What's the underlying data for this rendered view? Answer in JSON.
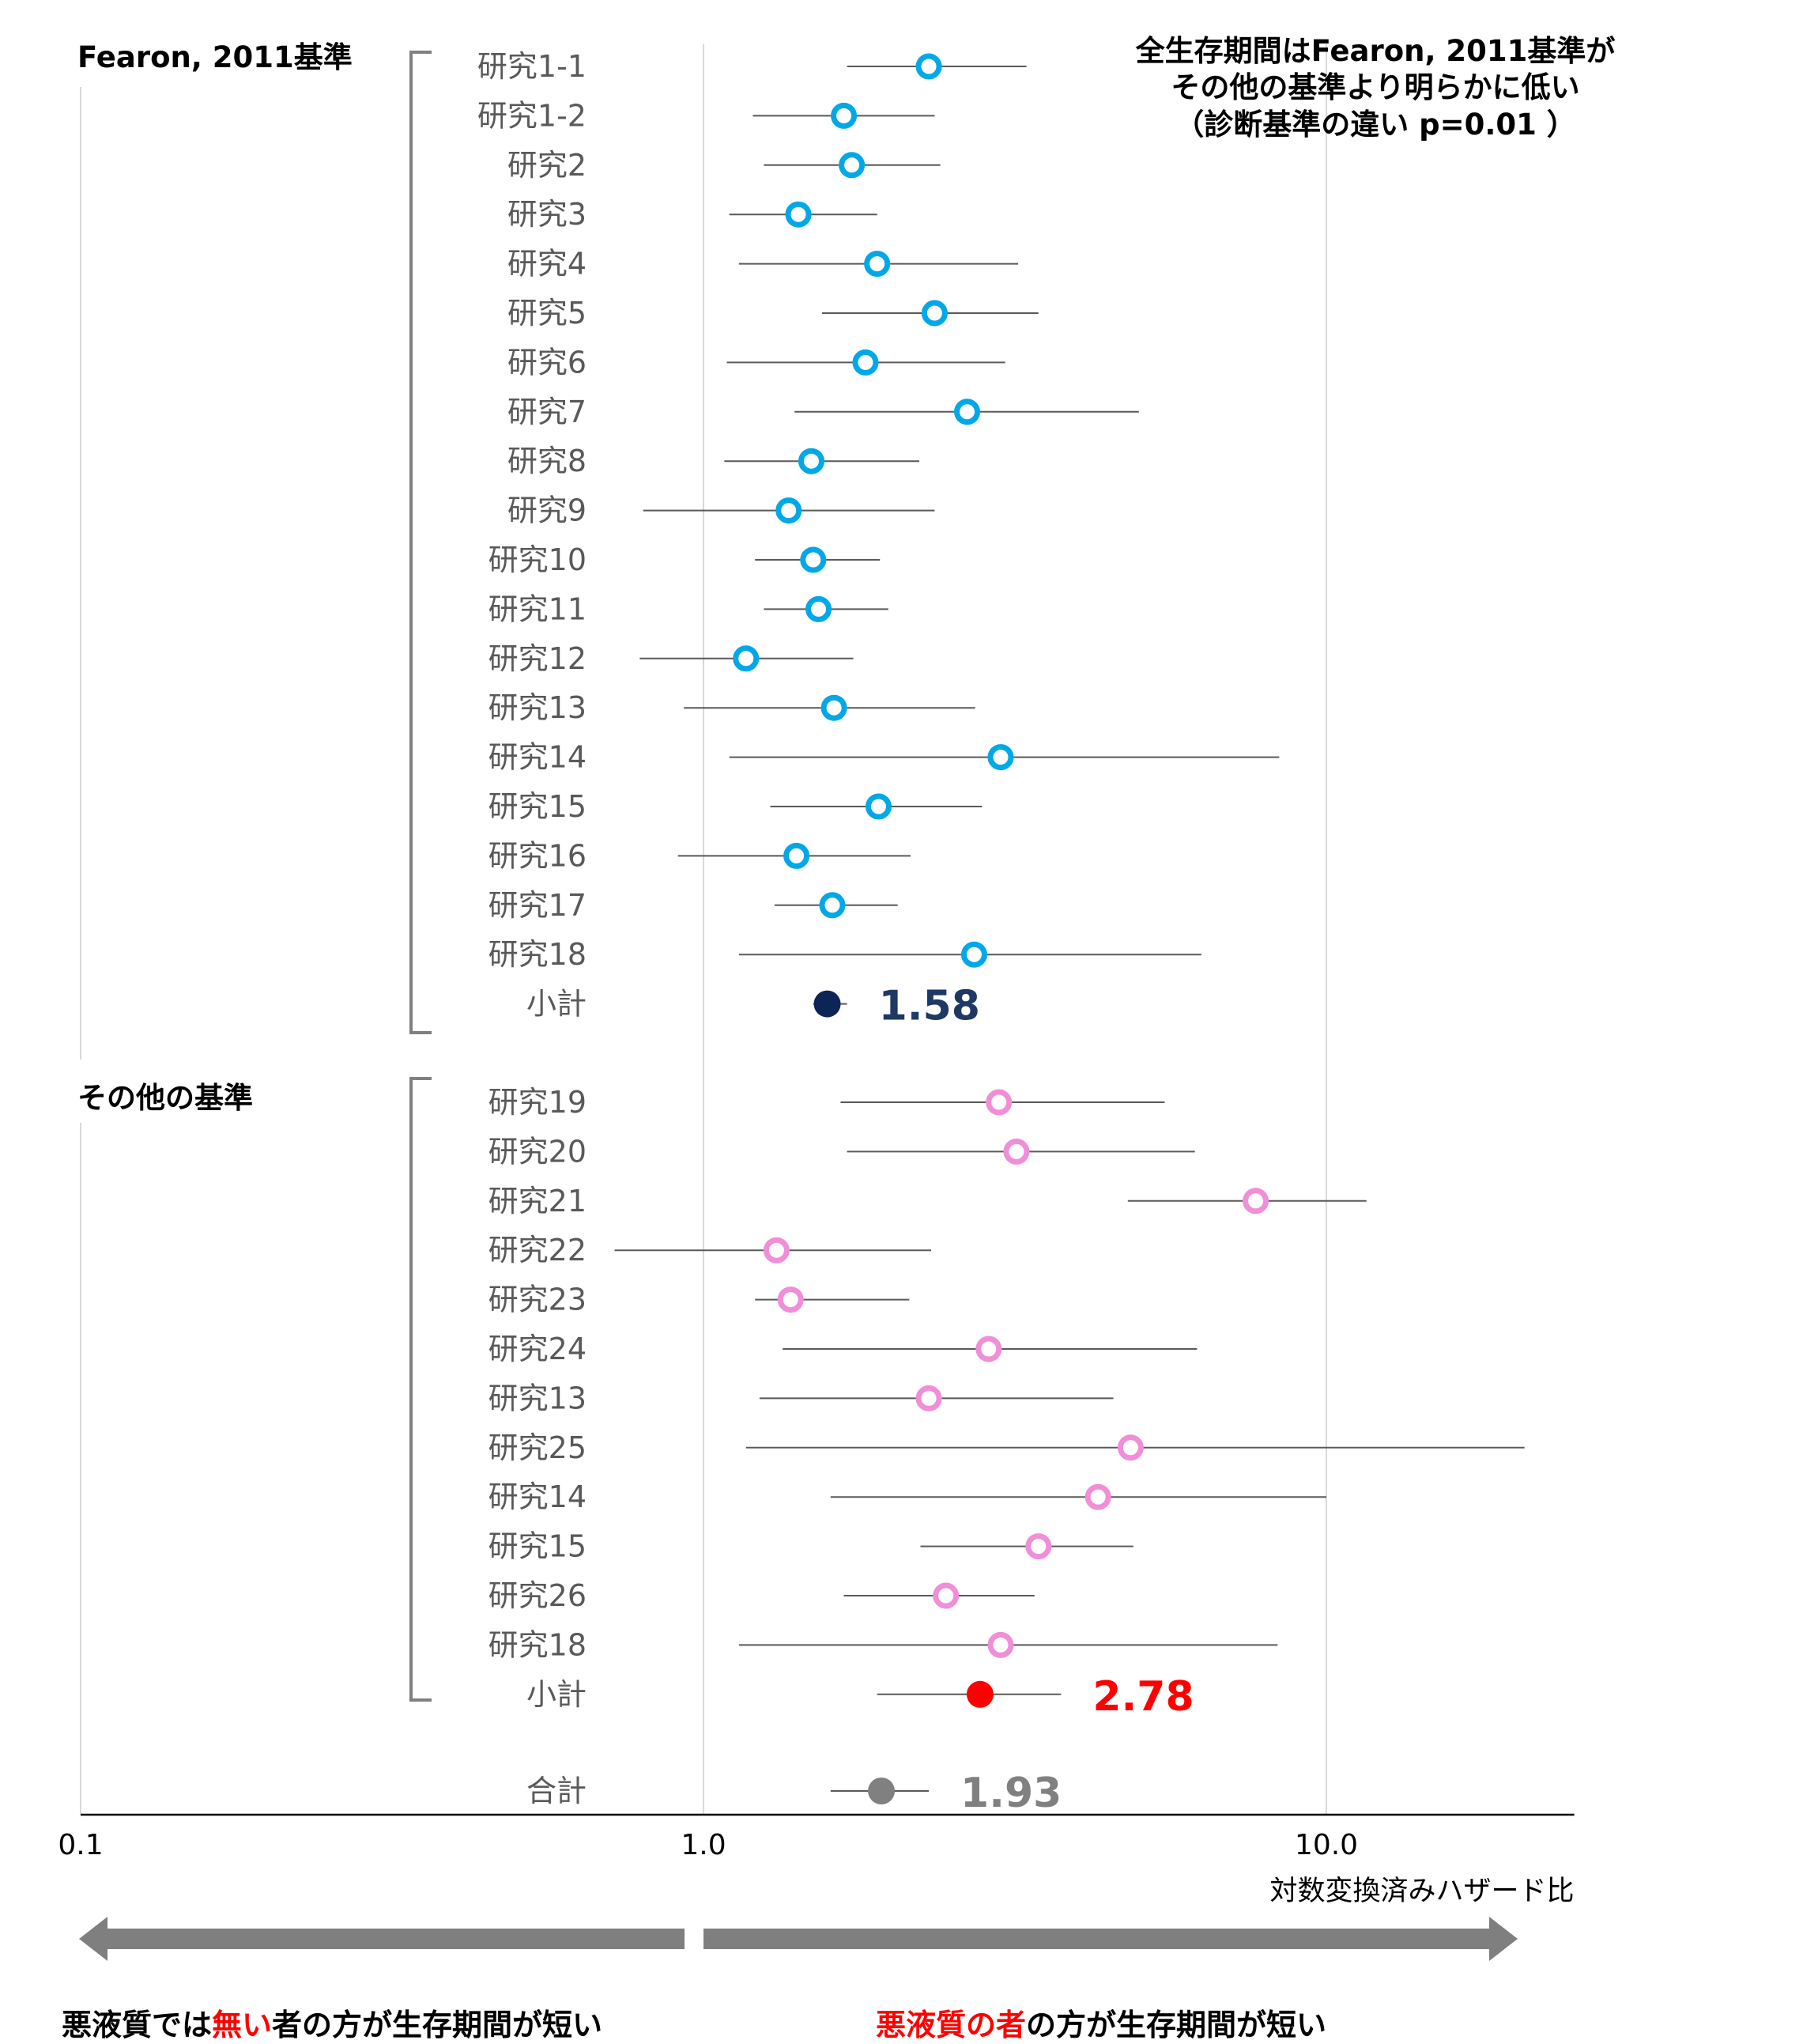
{
  "chart_data": {
    "type": "forest",
    "x_scale": "log",
    "xlim": [
      0.1,
      25
    ],
    "x_ticks": [
      "0.1",
      "1.0",
      "10.0"
    ],
    "xlabel": "対数変換済みハザード比",
    "annotation": [
      "全生存期間はFearon, 2011基準が",
      "その他の基準より明らかに低い",
      "（診断基準の違い p=0.01 ）"
    ],
    "colors": {
      "group1_marker": "#00a8e8",
      "group1_subtotal": "#0d2456",
      "group2_marker": "#f08fd7",
      "group2_subtotal": "#ff0000",
      "total": "#808080",
      "ci_line": "#595959",
      "arrow": "#7f7f7f"
    },
    "groups": [
      {
        "label": "Fearon, 2011基準",
        "studies": [
          {
            "name": "研究1-1",
            "hr": 2.3,
            "lo": 1.7,
            "hi": 3.3
          },
          {
            "name": "研究1-2",
            "hr": 1.68,
            "lo": 1.2,
            "hi": 2.35
          },
          {
            "name": "研究2",
            "hr": 1.73,
            "lo": 1.25,
            "hi": 2.4
          },
          {
            "name": "研究3",
            "hr": 1.42,
            "lo": 1.1,
            "hi": 1.9
          },
          {
            "name": "研究4",
            "hr": 1.9,
            "lo": 1.14,
            "hi": 3.2
          },
          {
            "name": "研究5",
            "hr": 2.35,
            "lo": 1.55,
            "hi": 3.45
          },
          {
            "name": "研究6",
            "hr": 1.82,
            "lo": 1.09,
            "hi": 3.05
          },
          {
            "name": "研究7",
            "hr": 2.65,
            "lo": 1.4,
            "hi": 5.0
          },
          {
            "name": "研究8",
            "hr": 1.49,
            "lo": 1.08,
            "hi": 2.22
          },
          {
            "name": "研究9",
            "hr": 1.37,
            "lo": 0.8,
            "hi": 2.35
          },
          {
            "name": "研究10",
            "hr": 1.5,
            "lo": 1.21,
            "hi": 1.92
          },
          {
            "name": "研究11",
            "hr": 1.53,
            "lo": 1.25,
            "hi": 1.98
          },
          {
            "name": "研究12",
            "hr": 1.17,
            "lo": 0.79,
            "hi": 1.74
          },
          {
            "name": "研究13",
            "hr": 1.62,
            "lo": 0.93,
            "hi": 2.73
          },
          {
            "name": "研究14",
            "hr": 3.0,
            "lo": 1.1,
            "hi": 8.4
          },
          {
            "name": "研究15",
            "hr": 1.91,
            "lo": 1.28,
            "hi": 2.8
          },
          {
            "name": "研究16",
            "hr": 1.41,
            "lo": 0.91,
            "hi": 2.15
          },
          {
            "name": "研究17",
            "hr": 1.61,
            "lo": 1.3,
            "hi": 2.05
          },
          {
            "name": "研究18",
            "hr": 2.72,
            "lo": 1.14,
            "hi": 6.3
          }
        ],
        "subtotal": {
          "name": "小計",
          "hr": 1.58,
          "lo": 1.5,
          "hi": 1.7,
          "label": "1.58"
        }
      },
      {
        "label": "その他の基準",
        "studies": [
          {
            "name": "研究19",
            "hr": 2.98,
            "lo": 1.66,
            "hi": 5.5
          },
          {
            "name": "研究20",
            "hr": 3.18,
            "lo": 1.7,
            "hi": 6.15
          },
          {
            "name": "研究21",
            "hr": 7.7,
            "lo": 4.8,
            "hi": 11.6
          },
          {
            "name": "研究22",
            "hr": 1.31,
            "lo": 0.72,
            "hi": 2.32
          },
          {
            "name": "研究23",
            "hr": 1.38,
            "lo": 1.21,
            "hi": 2.14
          },
          {
            "name": "研究24",
            "hr": 2.87,
            "lo": 1.34,
            "hi": 6.2
          },
          {
            "name": "研究13",
            "hr": 2.3,
            "lo": 1.23,
            "hi": 4.55
          },
          {
            "name": "研究25",
            "hr": 4.85,
            "lo": 1.17,
            "hi": 20.8
          },
          {
            "name": "研究14",
            "hr": 4.3,
            "lo": 1.6,
            "hi": 10.0
          },
          {
            "name": "研究15",
            "hr": 3.45,
            "lo": 2.23,
            "hi": 4.9
          },
          {
            "name": "研究26",
            "hr": 2.45,
            "lo": 1.68,
            "hi": 3.4
          },
          {
            "name": "研究18",
            "hr": 3.0,
            "lo": 1.14,
            "hi": 8.35
          }
        ],
        "subtotal": {
          "name": "小計",
          "hr": 2.78,
          "lo": 1.9,
          "hi": 3.75,
          "label": "2.78"
        }
      }
    ],
    "total": {
      "name": "合計",
      "hr": 1.93,
      "lo": 1.6,
      "hi": 2.3,
      "label": "1.93"
    }
  },
  "bottom": {
    "left_parts": [
      "悪液質では",
      "無い",
      "者の方が生存期間が短い"
    ],
    "right_parts": [
      "悪液質の者",
      "の方が生存期間が短い"
    ]
  }
}
